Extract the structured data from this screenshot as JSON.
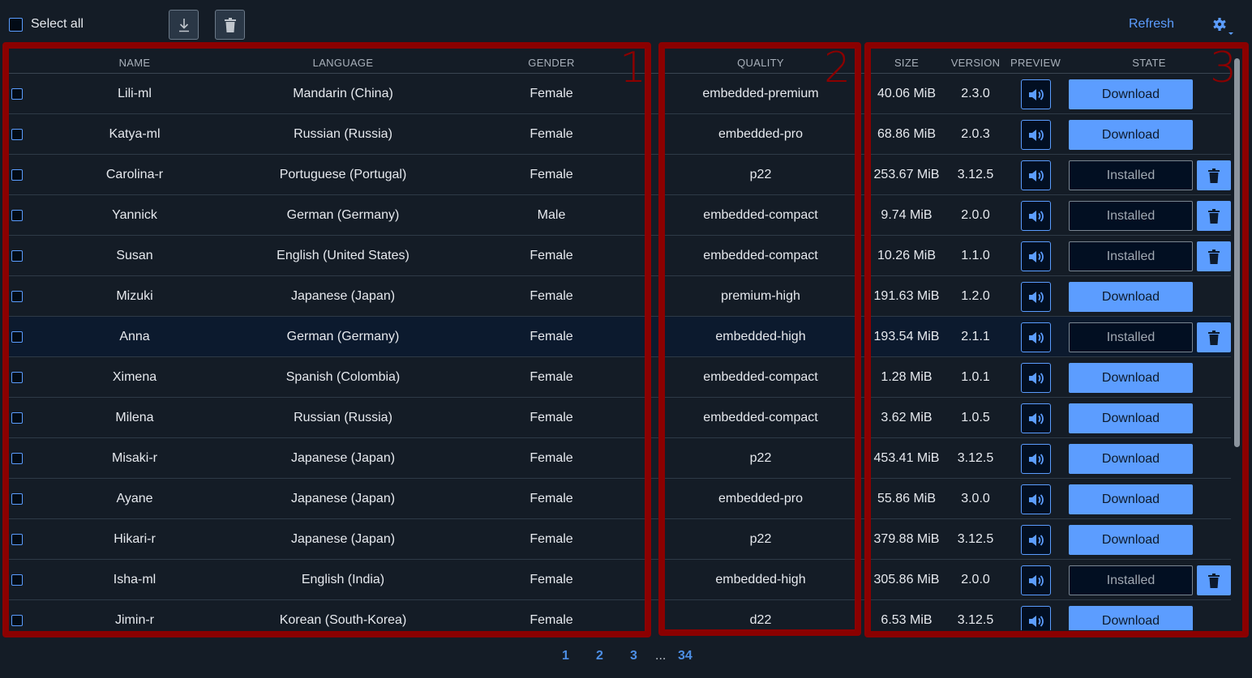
{
  "toolbar": {
    "select_all_label": "Select all",
    "download_icon": "download-icon",
    "delete_icon": "trash-icon",
    "refresh_label": "Refresh",
    "settings_icon": "gear-icon"
  },
  "colors": {
    "accent": "#5c9dff",
    "background": "#141c26",
    "annotation": "#8b0000",
    "selected_row": "#0c1a2e"
  },
  "annotations": [
    "1",
    "2",
    "3"
  ],
  "columns": {
    "name": "NAME",
    "language": "LANGUAGE",
    "gender": "GENDER",
    "quality": "QUALITY",
    "size": "SIZE",
    "version": "VERSION",
    "preview": "PREVIEW",
    "state": "STATE"
  },
  "rows": [
    {
      "name": "Lili-ml",
      "language": "Mandarin (China)",
      "gender": "Female",
      "quality": "embedded-premium",
      "size": "40.06 MiB",
      "version": "2.3.0",
      "state": "Download"
    },
    {
      "name": "Katya-ml",
      "language": "Russian (Russia)",
      "gender": "Female",
      "quality": "embedded-pro",
      "size": "68.86 MiB",
      "version": "2.0.3",
      "state": "Download"
    },
    {
      "name": "Carolina-r",
      "language": "Portuguese (Portugal)",
      "gender": "Female",
      "quality": "p22",
      "size": "253.67 MiB",
      "version": "3.12.5",
      "state": "Installed"
    },
    {
      "name": "Yannick",
      "language": "German (Germany)",
      "gender": "Male",
      "quality": "embedded-compact",
      "size": "9.74 MiB",
      "version": "2.0.0",
      "state": "Installed"
    },
    {
      "name": "Susan",
      "language": "English (United States)",
      "gender": "Female",
      "quality": "embedded-compact",
      "size": "10.26 MiB",
      "version": "1.1.0",
      "state": "Installed"
    },
    {
      "name": "Mizuki",
      "language": "Japanese (Japan)",
      "gender": "Female",
      "quality": "premium-high",
      "size": "191.63 MiB",
      "version": "1.2.0",
      "state": "Download"
    },
    {
      "name": "Anna",
      "language": "German (Germany)",
      "gender": "Female",
      "quality": "embedded-high",
      "size": "193.54 MiB",
      "version": "2.1.1",
      "state": "Installed",
      "selected": true
    },
    {
      "name": "Ximena",
      "language": "Spanish (Colombia)",
      "gender": "Female",
      "quality": "embedded-compact",
      "size": "1.28 MiB",
      "version": "1.0.1",
      "state": "Download"
    },
    {
      "name": "Milena",
      "language": "Russian (Russia)",
      "gender": "Female",
      "quality": "embedded-compact",
      "size": "3.62 MiB",
      "version": "1.0.5",
      "state": "Download"
    },
    {
      "name": "Misaki-r",
      "language": "Japanese (Japan)",
      "gender": "Female",
      "quality": "p22",
      "size": "453.41 MiB",
      "version": "3.12.5",
      "state": "Download"
    },
    {
      "name": "Ayane",
      "language": "Japanese (Japan)",
      "gender": "Female",
      "quality": "embedded-pro",
      "size": "55.86 MiB",
      "version": "3.0.0",
      "state": "Download"
    },
    {
      "name": "Hikari-r",
      "language": "Japanese (Japan)",
      "gender": "Female",
      "quality": "p22",
      "size": "379.88 MiB",
      "version": "3.12.5",
      "state": "Download"
    },
    {
      "name": "Isha-ml",
      "language": "English (India)",
      "gender": "Female",
      "quality": "embedded-high",
      "size": "305.86 MiB",
      "version": "2.0.0",
      "state": "Installed"
    },
    {
      "name": "Jimin-r",
      "language": "Korean (South-Korea)",
      "gender": "Female",
      "quality": "d22",
      "size": "6.53 MiB",
      "version": "3.12.5",
      "state": "Download"
    }
  ],
  "pagination": {
    "pages": [
      "1",
      "2",
      "3"
    ],
    "ellipsis": "...",
    "last": "34",
    "current": "1"
  }
}
